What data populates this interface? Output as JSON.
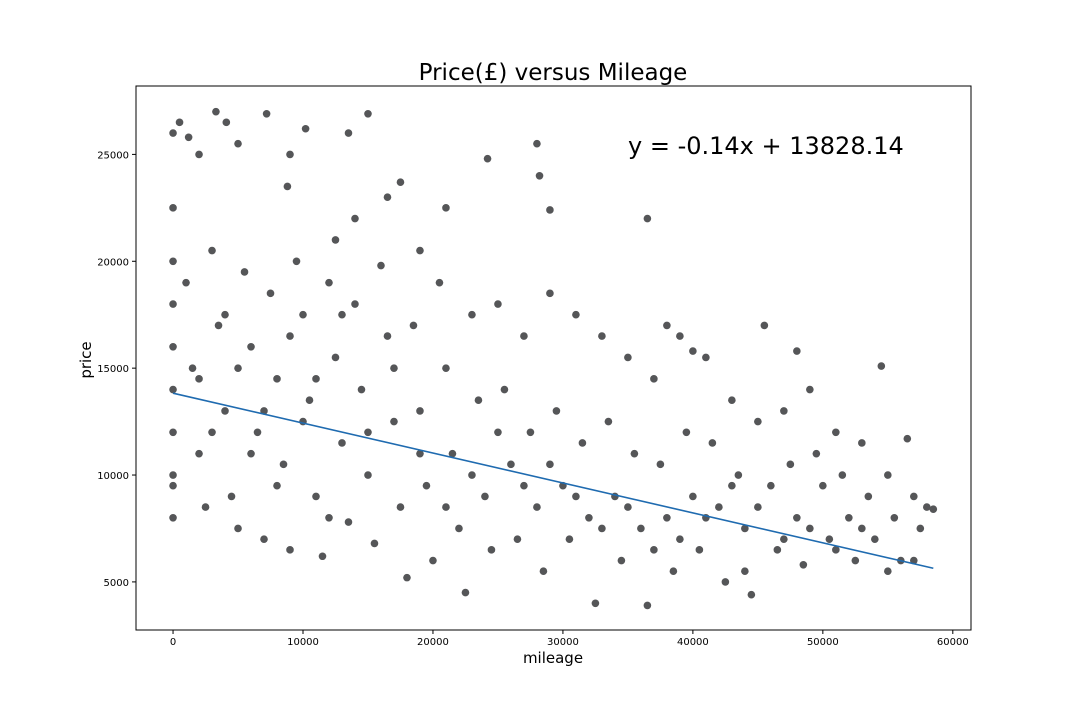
{
  "chart_data": {
    "type": "scatter",
    "title": "Price(£) versus Mileage",
    "x_label": "mileage",
    "y_label": "price",
    "annotation": "y = -0.14x + 13828.14",
    "annotation_color": "#2b6ca8",
    "xlim": [
      -2850,
      61400
    ],
    "ylim": [
      2750,
      28200
    ],
    "xticks": [
      0,
      10000,
      20000,
      30000,
      40000,
      50000,
      60000
    ],
    "yticks": [
      5000,
      10000,
      15000,
      20000,
      25000
    ],
    "grid": false,
    "series": [
      {
        "type": "scatter",
        "color": "#555658",
        "x": [
          0,
          500,
          1200,
          3300,
          4100,
          7200,
          15000,
          13500,
          10200,
          5000,
          2000,
          9000,
          28000,
          24200,
          17500,
          28200,
          36500,
          29000,
          21000,
          16500,
          8800,
          14000,
          0,
          0,
          0,
          0,
          0,
          0,
          0,
          0,
          0,
          1000,
          1500,
          2000,
          2500,
          3000,
          3500,
          4000,
          4500,
          5000,
          5500,
          6000,
          6500,
          7000,
          7500,
          8000,
          8500,
          9000,
          9500,
          10000,
          10500,
          11000,
          11500,
          12000,
          12500,
          13000,
          13500,
          14000,
          14500,
          15000,
          15500,
          16000,
          16500,
          17000,
          17500,
          18000,
          18500,
          19000,
          19500,
          20000,
          20500,
          21000,
          21500,
          22000,
          22500,
          23000,
          23500,
          24000,
          24500,
          25000,
          25500,
          26000,
          26500,
          27000,
          27500,
          28000,
          28500,
          29000,
          29500,
          30000,
          30500,
          31000,
          31500,
          32000,
          32500,
          33000,
          33500,
          34000,
          34500,
          35000,
          35500,
          36000,
          36500,
          37000,
          37500,
          38000,
          38500,
          39000,
          39500,
          40000,
          40500,
          41000,
          41500,
          42000,
          42500,
          43000,
          43500,
          44000,
          44500,
          45000,
          45500,
          46000,
          46500,
          47000,
          47500,
          48000,
          48500,
          49000,
          49500,
          50000,
          50500,
          51000,
          51500,
          52000,
          52500,
          53000,
          53500,
          54000,
          54500,
          55000,
          55500,
          56000,
          56500,
          57000,
          57500,
          58000,
          58500,
          48000,
          38000,
          40000,
          19000,
          12500,
          44000,
          2000,
          4000,
          6000,
          8000,
          10000,
          12000,
          3000,
          5000,
          7000,
          9000,
          11000,
          13000,
          15000,
          17000,
          19000,
          21000,
          23000,
          25000,
          27000,
          29000,
          31000,
          33000,
          35000,
          37000,
          39000,
          41000,
          43000,
          45000,
          47000,
          49000,
          51000,
          53000,
          55000,
          57000
        ],
        "values": [
          26000,
          26500,
          25800,
          27000,
          26500,
          26900,
          26900,
          26000,
          26200,
          25500,
          25000,
          25000,
          25500,
          24800,
          23700,
          24000,
          22000,
          22400,
          22500,
          23000,
          23500,
          22000,
          20000,
          18000,
          16000,
          14000,
          12000,
          10000,
          8000,
          9500,
          22500,
          19000,
          15000,
          11000,
          8500,
          20500,
          17000,
          13000,
          9000,
          7500,
          19500,
          16000,
          12000,
          7000,
          18500,
          14500,
          10500,
          6500,
          20000,
          17500,
          13500,
          9000,
          6200,
          19000,
          15500,
          11500,
          7800,
          18000,
          14000,
          10000,
          6800,
          19800,
          16500,
          12500,
          8500,
          5200,
          17000,
          13000,
          9500,
          6000,
          19000,
          15000,
          11000,
          7500,
          4500,
          17500,
          13500,
          9000,
          6500,
          18000,
          14000,
          10500,
          7000,
          16500,
          12000,
          8500,
          5500,
          18500,
          13000,
          9500,
          7000,
          17500,
          11500,
          8000,
          4000,
          16500,
          12500,
          9000,
          6000,
          15500,
          11000,
          7500,
          3900,
          14500,
          10500,
          8000,
          5500,
          16500,
          12000,
          9000,
          6500,
          15500,
          11500,
          8500,
          5000,
          13500,
          10000,
          7500,
          4400,
          12500,
          17000,
          9500,
          6500,
          13000,
          10500,
          8000,
          5800,
          14000,
          11000,
          9500,
          7000,
          12000,
          10000,
          8000,
          6000,
          11500,
          9000,
          7000,
          15100,
          10000,
          8000,
          6000,
          11700,
          9000,
          7500,
          8500,
          8400,
          15800,
          17000,
          15800,
          20500,
          21000,
          5500,
          14500,
          17500,
          11000,
          9500,
          12500,
          8000,
          12000,
          15000,
          13000,
          16500,
          14500,
          17500,
          12000,
          15000,
          11000,
          8500,
          10000,
          12000,
          9500,
          10500,
          9000,
          7500,
          8500,
          6500,
          7000,
          8000,
          9500,
          8500,
          7000,
          7500,
          6500,
          7500,
          5500,
          6000
        ]
      },
      {
        "type": "line",
        "color": "#1f6bb0",
        "x": [
          0,
          58500
        ],
        "values": [
          13828.14,
          5638.14
        ]
      }
    ]
  }
}
